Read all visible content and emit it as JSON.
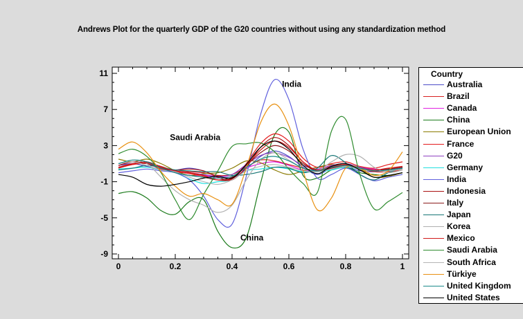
{
  "chart_data": {
    "type": "line",
    "title": "Andrews Plot for the quarterly GDP of the G20 countries without using any standardization method",
    "xlabel": "",
    "ylabel": "",
    "xlim": [
      0,
      1
    ],
    "ylim": [
      -9.6,
      11.6
    ],
    "x_ticks": [
      0,
      0.2,
      0.4,
      0.6,
      0.8,
      1
    ],
    "x_tick_labels": [
      "0",
      "0.2",
      "0.4",
      "0.6",
      "0.8",
      "1"
    ],
    "y_ticks": [
      -9,
      -5,
      -1,
      3,
      7,
      11
    ],
    "y_tick_labels": [
      "-9",
      "-5",
      "-1",
      "3",
      "7",
      "11"
    ],
    "grid": false,
    "legend": {
      "title": "Country",
      "position": "right"
    },
    "x": [
      0,
      0.05,
      0.1,
      0.15,
      0.2,
      0.25,
      0.3,
      0.35,
      0.4,
      0.45,
      0.5,
      0.55,
      0.6,
      0.65,
      0.7,
      0.75,
      0.8,
      0.85,
      0.9,
      0.95,
      1
    ],
    "series": [
      {
        "name": "Australia",
        "color": "#4b4bc8",
        "values": [
          0.8,
          1.0,
          0.7,
          0.4,
          0.3,
          0.5,
          0.2,
          -0.4,
          -0.6,
          0.4,
          1.8,
          2.4,
          1.8,
          0.6,
          -0.2,
          0.5,
          0.6,
          0.2,
          0.1,
          0.3,
          0.6
        ]
      },
      {
        "name": "Brazil",
        "color": "#d82020",
        "values": [
          0.5,
          0.9,
          1.1,
          0.7,
          0.2,
          0.1,
          0.0,
          -0.3,
          -0.2,
          0.6,
          1.4,
          1.3,
          0.9,
          0.5,
          0.1,
          0.6,
          0.9,
          0.5,
          0.1,
          0.1,
          0.3
        ]
      },
      {
        "name": "Canada",
        "color": "#e020e0",
        "values": [
          0.6,
          1.0,
          1.2,
          0.6,
          0.0,
          -0.3,
          -0.3,
          -0.5,
          -0.4,
          0.5,
          1.0,
          1.2,
          0.8,
          0.3,
          0.3,
          0.6,
          0.8,
          0.6,
          0.4,
          0.3,
          0.6
        ]
      },
      {
        "name": "China",
        "color": "#1a7a1a",
        "values": [
          -2.3,
          -2.1,
          -2.8,
          -4.2,
          -4.6,
          -3.2,
          -3.0,
          -6.5,
          -8.3,
          -7.2,
          -1.2,
          4.2,
          4.5,
          -0.3,
          -0.6,
          0.3,
          0.6,
          0.0,
          -0.2,
          -0.3,
          0.0
        ]
      },
      {
        "name": "European Union",
        "color": "#8a7a00",
        "values": [
          1.5,
          1.2,
          1.5,
          1.0,
          0.2,
          -0.3,
          -0.1,
          0.0,
          0.5,
          1.3,
          1.1,
          0.3,
          -0.2,
          0.2,
          0.6,
          0.9,
          0.7,
          0.4,
          -0.5,
          -0.4,
          0.0
        ]
      },
      {
        "name": "France",
        "color": "#e41a1c",
        "values": [
          0.6,
          0.9,
          1.0,
          0.4,
          0.1,
          -0.1,
          -0.4,
          -0.8,
          -0.6,
          1.0,
          3.2,
          4.3,
          3.5,
          1.6,
          0.6,
          1.0,
          1.2,
          0.7,
          0.5,
          0.9,
          1.2
        ]
      },
      {
        "name": "G20",
        "color": "#8e3fbf",
        "values": [
          0.8,
          1.2,
          1.0,
          0.5,
          0.2,
          0.0,
          -0.2,
          -0.4,
          -0.2,
          0.9,
          1.9,
          2.2,
          1.7,
          0.8,
          0.4,
          0.8,
          1.0,
          0.6,
          0.3,
          0.4,
          0.6
        ]
      },
      {
        "name": "Germany",
        "color": "#20e0e0",
        "values": [
          0.4,
          0.5,
          0.6,
          0.3,
          0.0,
          -0.7,
          -1.2,
          -1.0,
          -0.8,
          0.2,
          0.4,
          0.6,
          0.4,
          0.1,
          0.1,
          0.3,
          0.6,
          0.4,
          0.2,
          0.3,
          0.4
        ]
      },
      {
        "name": "India",
        "color": "#6060dd",
        "values": [
          0.0,
          0.2,
          0.4,
          0.2,
          0.0,
          -0.8,
          -2.6,
          -5.2,
          -5.7,
          -0.4,
          6.4,
          10.3,
          8.1,
          2.6,
          -0.6,
          -0.2,
          0.5,
          -0.2,
          -0.9,
          -0.5,
          -0.2
        ]
      },
      {
        "name": "Indonesia",
        "color": "#aa1010",
        "values": [
          0.8,
          1.2,
          1.0,
          0.6,
          0.3,
          0.4,
          0.2,
          -0.5,
          -0.8,
          0.6,
          2.8,
          3.9,
          3.0,
          1.2,
          0.2,
          0.6,
          0.8,
          0.4,
          0.2,
          0.4,
          0.6
        ]
      },
      {
        "name": "Italy",
        "color": "#8b1a1a",
        "values": [
          0.6,
          1.0,
          1.2,
          0.6,
          0.0,
          -0.3,
          -0.5,
          -0.8,
          -0.5,
          0.8,
          2.2,
          3.0,
          2.4,
          1.0,
          0.2,
          0.5,
          0.8,
          0.5,
          0.2,
          0.4,
          0.6
        ]
      },
      {
        "name": "Japan",
        "color": "#157575",
        "values": [
          0.3,
          0.5,
          0.8,
          0.6,
          0.3,
          0.2,
          0.1,
          0.1,
          -0.3,
          -0.2,
          0.1,
          0.6,
          0.5,
          0.0,
          0.5,
          1.9,
          1.1,
          -0.2,
          -0.8,
          0.0,
          0.5
        ]
      },
      {
        "name": "Korea",
        "color": "#b0b0b0",
        "values": [
          1.0,
          1.4,
          1.0,
          -0.5,
          -2.0,
          -3.0,
          -3.6,
          -4.4,
          -3.6,
          -0.8,
          1.4,
          2.2,
          1.4,
          0.5,
          0.2,
          1.2,
          2.0,
          1.8,
          0.6,
          0.0,
          0.3
        ]
      },
      {
        "name": "Mexico",
        "color": "#d01818",
        "values": [
          0.6,
          1.0,
          1.1,
          0.6,
          0.2,
          0.0,
          -0.3,
          -0.8,
          -0.7,
          0.8,
          2.5,
          3.5,
          2.8,
          1.2,
          0.3,
          0.7,
          0.9,
          0.5,
          0.3,
          0.5,
          0.7
        ]
      },
      {
        "name": "Saudi Arabia",
        "color": "#2e8b2e",
        "values": [
          2.1,
          2.6,
          1.8,
          0.0,
          -3.0,
          -5.2,
          -2.4,
          0.2,
          2.9,
          3.2,
          3.3,
          2.3,
          0.4,
          -1.2,
          -2.2,
          4.6,
          5.9,
          -0.2,
          -4.0,
          -3.2,
          -2.2
        ]
      },
      {
        "name": "South Africa",
        "color": "#b5b5b5",
        "values": [
          1.0,
          1.2,
          0.8,
          0.3,
          0.1,
          -0.5,
          -1.0,
          -1.3,
          -0.8,
          0.2,
          0.7,
          0.9,
          0.6,
          0.2,
          0.1,
          0.4,
          0.7,
          0.4,
          0.2,
          0.2,
          0.4
        ]
      },
      {
        "name": "Türkiye",
        "color": "#e89010",
        "values": [
          2.6,
          3.4,
          2.2,
          0.1,
          -1.5,
          -2.6,
          -2.3,
          -3.0,
          -3.5,
          0.5,
          5.5,
          7.6,
          5.2,
          0.2,
          -4.1,
          -2.8,
          0.5,
          0.5,
          -0.3,
          0.2,
          2.3
        ]
      },
      {
        "name": "United Kingdom",
        "color": "#1a8a8a",
        "values": [
          1.0,
          1.4,
          1.2,
          0.5,
          0.0,
          -0.3,
          -0.5,
          -0.6,
          -0.4,
          0.6,
          1.5,
          1.8,
          1.3,
          0.5,
          0.2,
          0.6,
          0.8,
          0.5,
          0.2,
          0.3,
          0.5
        ]
      },
      {
        "name": "United States",
        "color": "#000000",
        "values": [
          -0.2,
          -0.5,
          -1.3,
          -1.5,
          -1.3,
          -1.0,
          -0.6,
          -0.4,
          -0.6,
          0.9,
          2.8,
          3.5,
          2.6,
          0.8,
          -0.1,
          0.7,
          1.0,
          0.3,
          -0.5,
          -0.3,
          0.0
        ]
      }
    ],
    "annotations": [
      {
        "text": "India",
        "x": 0.61,
        "y": 9.5
      },
      {
        "text": "Saudi Arabia",
        "x": 0.27,
        "y": 3.6
      },
      {
        "text": "China",
        "x": 0.47,
        "y": -7.5
      }
    ]
  }
}
